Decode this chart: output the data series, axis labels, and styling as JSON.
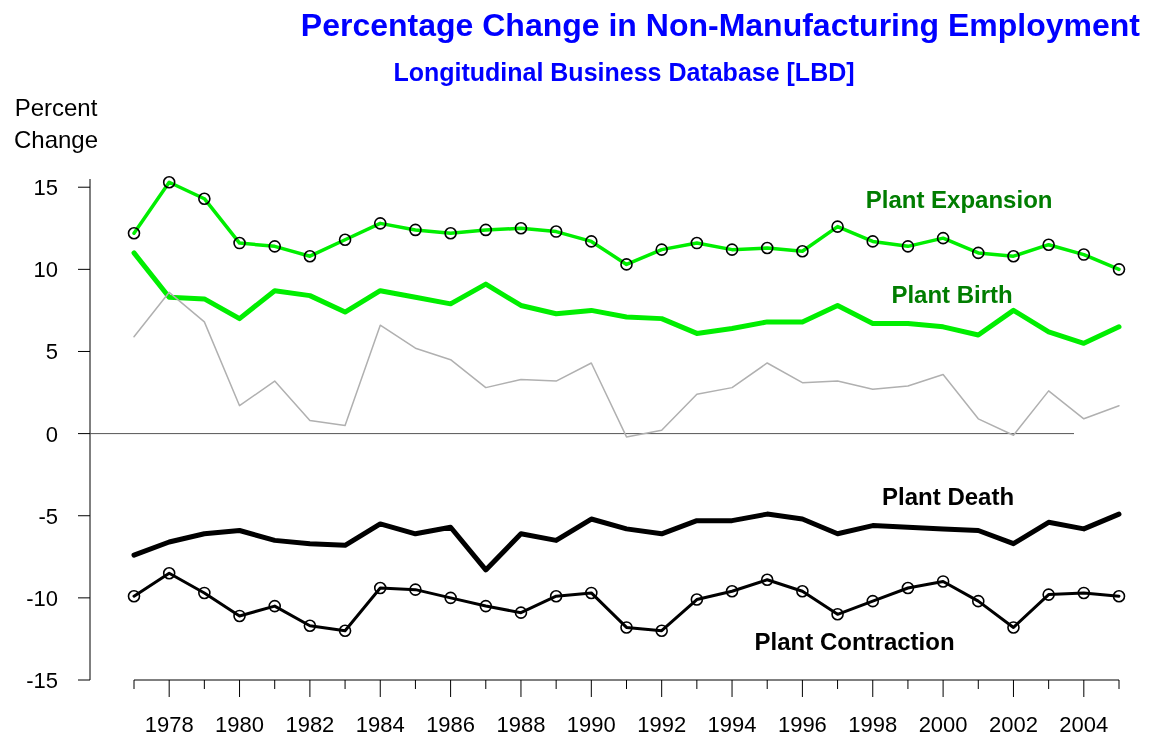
{
  "chart_data": {
    "type": "line",
    "title": "Percentage Change in Non-Manufacturing Employment",
    "subtitle": "Longitudinal Business Database [LBD]",
    "ylabel": "Percent\nChange",
    "x": [
      1977,
      1978,
      1979,
      1980,
      1981,
      1982,
      1983,
      1984,
      1985,
      1986,
      1987,
      1988,
      1989,
      1990,
      1991,
      1992,
      1993,
      1994,
      1995,
      1996,
      1997,
      1998,
      1999,
      2000,
      2001,
      2002,
      2003,
      2004,
      2005
    ],
    "series": [
      {
        "name": "Plant Expansion",
        "color": "#00ee00",
        "marker": "circle",
        "values": [
          12.2,
          15.3,
          14.3,
          11.6,
          11.4,
          10.8,
          11.8,
          12.8,
          12.4,
          12.2,
          12.4,
          12.5,
          12.3,
          11.7,
          10.3,
          11.2,
          11.6,
          11.2,
          11.3,
          11.1,
          12.6,
          11.7,
          11.4,
          11.9,
          11.0,
          10.8,
          11.5,
          10.9,
          10.0
        ]
      },
      {
        "name": "Plant Birth",
        "color": "#00ee00",
        "values": [
          11.0,
          8.3,
          8.2,
          7.0,
          8.7,
          8.4,
          7.4,
          8.7,
          8.3,
          7.9,
          9.1,
          7.8,
          7.3,
          7.5,
          7.1,
          7.0,
          6.1,
          6.4,
          6.8,
          6.8,
          7.8,
          6.7,
          6.7,
          6.5,
          6.0,
          7.5,
          6.2,
          5.5,
          6.5
        ]
      },
      {
        "color": "#b0b0b0",
        "values": [
          5.9,
          8.6,
          6.8,
          1.7,
          3.2,
          0.8,
          0.5,
          6.6,
          5.2,
          4.5,
          2.8,
          3.3,
          3.2,
          4.3,
          -0.2,
          0.2,
          2.4,
          2.8,
          4.3,
          3.1,
          3.2,
          2.7,
          2.9,
          3.6,
          0.9,
          -0.1,
          2.6,
          0.9,
          1.7
        ]
      },
      {
        "name": "Plant Death",
        "color": "#000000",
        "values": [
          -7.4,
          -6.6,
          -6.1,
          -5.9,
          -6.5,
          -6.7,
          -6.8,
          -5.5,
          -6.1,
          -5.7,
          -8.3,
          -6.1,
          -6.5,
          -5.2,
          -5.8,
          -6.1,
          -5.3,
          -5.3,
          -4.9,
          -5.2,
          -6.1,
          -5.6,
          -5.7,
          -5.8,
          -5.9,
          -6.7,
          -5.4,
          -5.8,
          -4.9
        ]
      },
      {
        "name": "Plant Contraction",
        "color": "#000000",
        "marker": "circle",
        "values": [
          -9.9,
          -8.5,
          -9.7,
          -11.1,
          -10.5,
          -11.7,
          -12.0,
          -9.4,
          -9.5,
          -10.0,
          -10.5,
          -10.9,
          -9.9,
          -9.7,
          -11.8,
          -12.0,
          -10.1,
          -9.6,
          -8.9,
          -9.6,
          -11.0,
          -10.2,
          -9.4,
          -9.0,
          -10.2,
          -11.8,
          -9.8,
          -9.7,
          -9.9
        ]
      }
    ],
    "xlim": [
      1977,
      2005
    ],
    "xticks": [
      {
        "value": 1977,
        "label": null
      },
      1978,
      {
        "value": 1979,
        "label": null
      },
      1980,
      {
        "value": 1981,
        "label": null
      },
      1982,
      {
        "value": 1983,
        "label": null
      },
      1984,
      {
        "value": 1985,
        "label": null
      },
      1986,
      {
        "value": 1987,
        "label": null
      },
      1988,
      {
        "value": 1989,
        "label": null
      },
      1990,
      {
        "value": 1991,
        "label": null
      },
      1992,
      {
        "value": 1993,
        "label": null
      },
      1994,
      {
        "value": 1995,
        "label": null
      },
      1996,
      {
        "value": 1997,
        "label": null
      },
      1998,
      {
        "value": 1999,
        "label": null
      },
      2000,
      {
        "value": 2001,
        "label": null
      },
      2002,
      {
        "value": 2003,
        "label": null
      },
      2004,
      {
        "value": 2005,
        "label": null
      }
    ],
    "ylim": [
      -15,
      15.5
    ],
    "yticks": [
      -15,
      -10,
      -5,
      0,
      5,
      10,
      15
    ],
    "ref_lines": [
      {
        "axis": "y",
        "value": 0,
        "color": "#555555"
      }
    ],
    "grid": false
  }
}
